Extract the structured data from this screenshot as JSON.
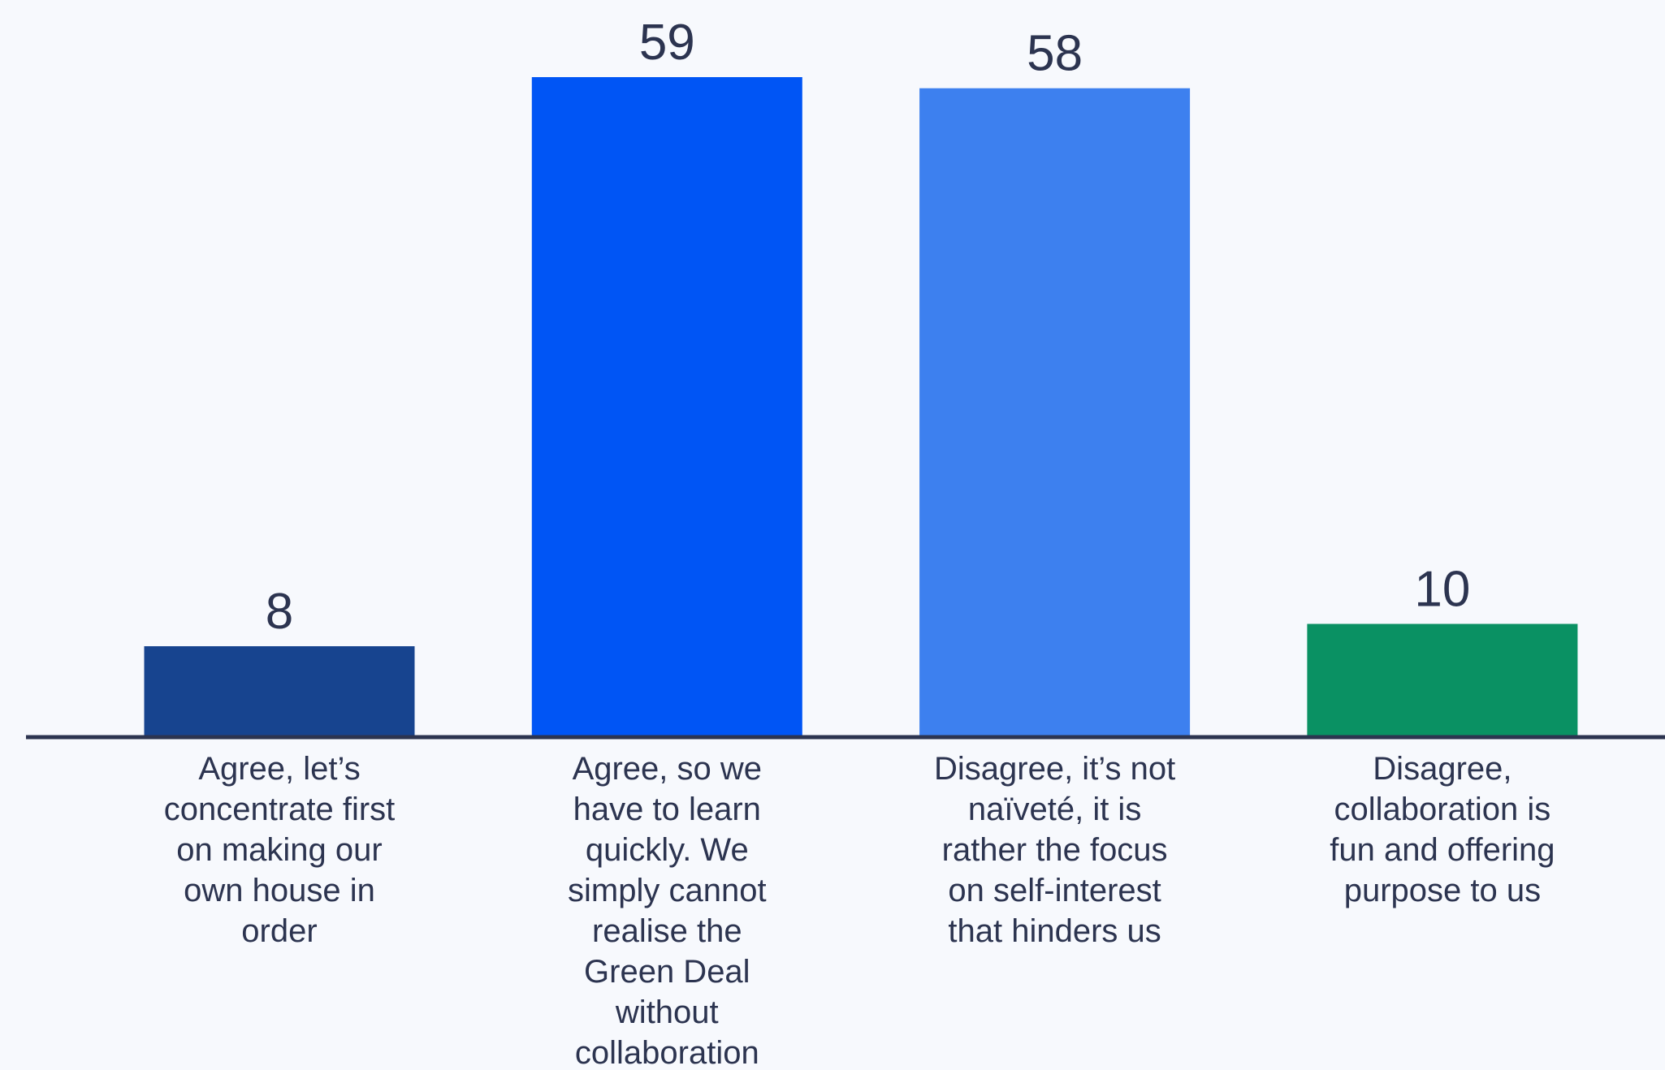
{
  "chart_data": {
    "type": "bar",
    "categories": [
      [
        "Agree, let’s",
        "concentrate first",
        "on making our",
        "own house in",
        "order"
      ],
      [
        "Agree, so we",
        "have to learn",
        "quickly. We",
        "simply cannot",
        "realise the",
        "Green Deal",
        "without",
        "collaboration"
      ],
      [
        "Disagree, it’s not",
        "naïveté, it is",
        "rather the focus",
        "on self-interest",
        "that hinders us"
      ],
      [
        "Disagree,",
        "collaboration is",
        "fun and offering",
        "purpose to us"
      ]
    ],
    "values": [
      8,
      59,
      58,
      10
    ],
    "data_labels": [
      "8",
      "59",
      "58",
      "10"
    ],
    "colors": [
      "#17448f",
      "#0055f5",
      "#3d80ef",
      "#0a9163"
    ],
    "axis_color": "#2c3450",
    "ylim": [
      0,
      59
    ],
    "grid": false,
    "legend": "none",
    "title": "",
    "xlabel": "",
    "ylabel": ""
  }
}
